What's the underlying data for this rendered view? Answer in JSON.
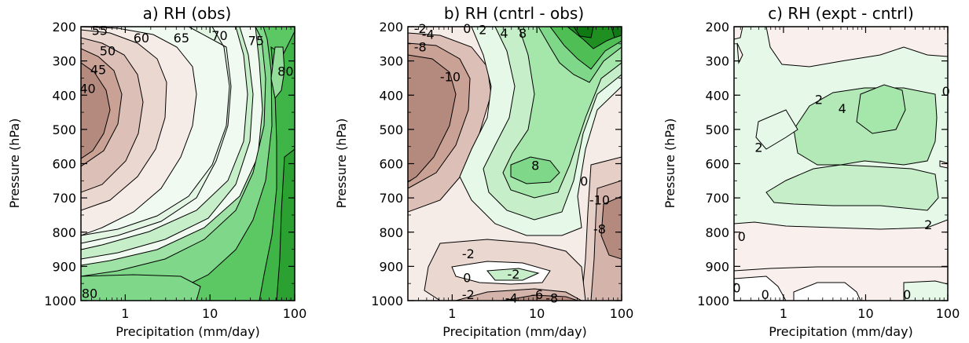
{
  "figure": {
    "panels": [
      {
        "title": "a) RH (obs)",
        "xlabel": "Precipitation (mm/day)",
        "ylabel": "Pressure (hPa)"
      },
      {
        "title": "b) RH (cntrl - obs)",
        "xlabel": "Precipitation (mm/day)",
        "ylabel": "Pressure (hPa)"
      },
      {
        "title": "c) RH (expt - cntrl)",
        "xlabel": "Precipitation (mm/day)",
        "ylabel": "Pressure (hPa)"
      }
    ]
  },
  "colors": {
    "brown_dark": "#b58a7e",
    "brown_mid": "#d3b3aa",
    "brown_light": "#f5ebe7",
    "green_pale": "#e6f8e8",
    "green_light": "#b3e9b7",
    "green_mid": "#7fd88a",
    "green_strong": "#4fbf55",
    "green_dark": "#1f8f22",
    "contour_line": "#000000"
  },
  "chart_data": [
    {
      "type": "heatmap",
      "title": "a) RH (obs)",
      "xlabel": "Precipitation (mm/day)",
      "ylabel": "Pressure (hPa)",
      "x_scale": "log",
      "xlim": [
        0.3,
        100
      ],
      "xticks": [
        1,
        10,
        100
      ],
      "y_reversed": true,
      "ylim": [
        1000,
        200
      ],
      "yticks": [
        200,
        300,
        400,
        500,
        600,
        700,
        800,
        900,
        1000
      ],
      "contour_labels": [
        {
          "text": "55",
          "x": 0.5,
          "p": 210
        },
        {
          "text": "60",
          "x": 1.55,
          "p": 232
        },
        {
          "text": "65",
          "x": 4.6,
          "p": 232
        },
        {
          "text": "70",
          "x": 13,
          "p": 225
        },
        {
          "text": "75",
          "x": 35,
          "p": 240
        },
        {
          "text": "50",
          "x": 0.62,
          "p": 270
        },
        {
          "text": "45",
          "x": 0.48,
          "p": 325
        },
        {
          "text": "40",
          "x": 0.36,
          "p": 380
        },
        {
          "text": "80",
          "x": 78,
          "p": 330
        },
        {
          "text": "80",
          "x": 0.38,
          "p": 978
        }
      ],
      "filled_regions": [
        {
          "level": "40-",
          "p_center": 490,
          "x_range": [
            0.3,
            1.0
          ]
        },
        {
          "level": "80+",
          "x_range": [
            30,
            100
          ],
          "p_range": [
            200,
            1000
          ]
        },
        {
          "level": "80+",
          "x_range": [
            0.3,
            3
          ],
          "p_range": [
            930,
            1000
          ]
        }
      ]
    },
    {
      "type": "heatmap",
      "title": "b) RH (cntrl - obs)",
      "xlabel": "Precipitation (mm/day)",
      "ylabel": "Pressure (hPa)",
      "x_scale": "log",
      "xlim": [
        0.3,
        100
      ],
      "xticks": [
        1,
        10,
        100
      ],
      "y_reversed": true,
      "ylim": [
        1000,
        200
      ],
      "yticks": [
        200,
        300,
        400,
        500,
        600,
        700,
        800,
        900,
        1000
      ],
      "contour_labels": [
        {
          "text": "-2",
          "x": 0.42,
          "p": 205
        },
        {
          "text": "-4",
          "x": 0.52,
          "p": 222
        },
        {
          "text": "-8",
          "x": 0.42,
          "p": 258
        },
        {
          "text": "0",
          "x": 1.5,
          "p": 205
        },
        {
          "text": "2",
          "x": 2.3,
          "p": 208
        },
        {
          "text": "4",
          "x": 4.1,
          "p": 218
        },
        {
          "text": "8",
          "x": 6.8,
          "p": 218
        },
        {
          "text": "-10",
          "x": 0.95,
          "p": 345
        },
        {
          "text": "8",
          "x": 9.6,
          "p": 605
        },
        {
          "text": "0",
          "x": 36,
          "p": 650
        },
        {
          "text": "-10",
          "x": 55,
          "p": 705
        },
        {
          "text": "-8",
          "x": 55,
          "p": 790
        },
        {
          "text": "-2",
          "x": 1.55,
          "p": 862
        },
        {
          "text": "0",
          "x": 1.5,
          "p": 932
        },
        {
          "text": "-2",
          "x": 5.3,
          "p": 922
        },
        {
          "text": "-2",
          "x": 1.55,
          "p": 982
        },
        {
          "text": "-4",
          "x": 5,
          "p": 992
        },
        {
          "text": "-6",
          "x": 10,
          "p": 982
        },
        {
          "text": "-8",
          "x": 15,
          "p": 992
        }
      ],
      "filled_regions": [
        {
          "level": "-10-",
          "x_range": [
            0.3,
            1.2
          ],
          "p_range": [
            300,
            650
          ]
        },
        {
          "level": "8+",
          "p_center": 600,
          "x_range": [
            5,
            20
          ]
        },
        {
          "level": "8+",
          "x_range": [
            15,
            100
          ],
          "p_range": [
            200,
            330
          ]
        },
        {
          "level": "-8-",
          "x_range": [
            40,
            100
          ],
          "p_range": [
            620,
            1000
          ]
        }
      ]
    },
    {
      "type": "heatmap",
      "title": "c) RH (expt - cntrl)",
      "xlabel": "Precipitation (mm/day)",
      "ylabel": "Pressure (hPa)",
      "x_scale": "log",
      "xlim": [
        0.25,
        100
      ],
      "xticks": [
        1,
        10,
        100
      ],
      "y_reversed": true,
      "ylim": [
        1000,
        200
      ],
      "yticks": [
        200,
        300,
        400,
        500,
        600,
        700,
        800,
        900,
        1000
      ],
      "contour_labels": [
        {
          "text": "0",
          "x": 95,
          "p": 388
        },
        {
          "text": "2",
          "x": 2.7,
          "p": 412
        },
        {
          "text": "4",
          "x": 5.2,
          "p": 438
        },
        {
          "text": "2",
          "x": 0.5,
          "p": 552
        },
        {
          "text": "0",
          "x": 0.31,
          "p": 812
        },
        {
          "text": "2",
          "x": 58,
          "p": 778
        },
        {
          "text": "0",
          "x": 0.27,
          "p": 962
        },
        {
          "text": "0",
          "x": 0.6,
          "p": 982
        },
        {
          "text": "0",
          "x": 32,
          "p": 982
        }
      ],
      "filled_regions": [
        {
          "level": "0-2",
          "x_range": [
            0.25,
            100
          ],
          "p_range": [
            200,
            880
          ]
        },
        {
          "level": "2-4",
          "x_range": [
            1.2,
            20
          ],
          "p_range": [
            520,
            800
          ]
        },
        {
          "level": "4+",
          "p_center": 420,
          "x_range": [
            5,
            25
          ]
        },
        {
          "level": "-2-0",
          "x_range": [
            0.25,
            100
          ],
          "p_range": [
            880,
            1000
          ]
        }
      ]
    }
  ]
}
